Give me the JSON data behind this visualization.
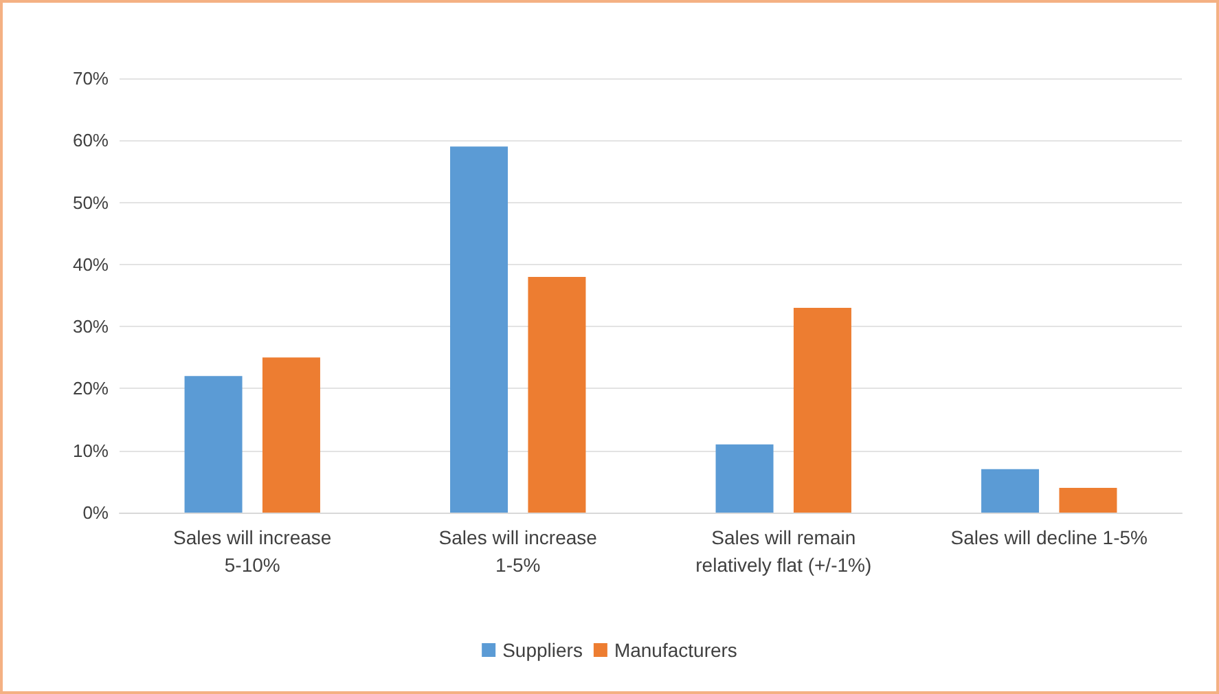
{
  "chart_data": {
    "type": "bar",
    "categories": [
      "Sales will increase\n5-10%",
      "Sales will increase\n1-5%",
      "Sales will remain\nrelatively flat (+/-1%)",
      "Sales will decline 1-5%"
    ],
    "series": [
      {
        "name": "Suppliers",
        "color": "#5b9bd5",
        "values": [
          22,
          59,
          11,
          7
        ]
      },
      {
        "name": "Manufacturers",
        "color": "#ed7d31",
        "values": [
          25,
          38,
          33,
          4
        ]
      }
    ],
    "ylim": [
      0,
      70
    ],
    "yticks": [
      {
        "value": 0,
        "label": "0%"
      },
      {
        "value": 10,
        "label": "10%"
      },
      {
        "value": 20,
        "label": "20%"
      },
      {
        "value": 30,
        "label": "30%"
      },
      {
        "value": 40,
        "label": "40%"
      },
      {
        "value": 50,
        "label": "50%"
      },
      {
        "value": 60,
        "label": "60%"
      },
      {
        "value": 70,
        "label": "70%"
      }
    ],
    "grid": true,
    "legend": "bottom"
  }
}
